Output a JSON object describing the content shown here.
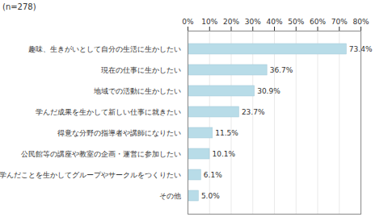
{
  "chart_data": {
    "type": "bar",
    "orientation": "horizontal",
    "annotations": [
      "(n=278)"
    ],
    "categories": [
      "趣味、生きがいとして自分の生活に生かしたい",
      "現在の仕事に生かしたい",
      "地域での活動に生かしたい",
      "学んだ成果を生かして新しい仕事に就きたい",
      "得意な分野の指導者や講師になりたい",
      "公民館等の講座や教室の企画・運営に参加したい",
      "学んだことを生かしてグループやサークルをつくりたい",
      "その他"
    ],
    "values": [
      73.4,
      36.7,
      30.9,
      23.7,
      11.5,
      10.1,
      6.1,
      5.0
    ],
    "value_labels": [
      "73.4%",
      "36.7%",
      "30.9%",
      "23.7%",
      "11.5%",
      "10.1%",
      "6.1%",
      "5.0%"
    ],
    "data_labels": true,
    "color": "#b8dce8",
    "xlim": [
      0,
      80
    ],
    "xticks": [
      {
        "value": 0,
        "label": "0%"
      },
      {
        "value": 10,
        "label": "10%"
      },
      {
        "value": 20,
        "label": "20%"
      },
      {
        "value": 30,
        "label": "30%"
      },
      {
        "value": 40,
        "label": "40%"
      },
      {
        "value": 50,
        "label": "50%"
      },
      {
        "value": 60,
        "label": "60%"
      },
      {
        "value": 70,
        "label": "70%"
      },
      {
        "value": 80,
        "label": "80%"
      }
    ],
    "grid": true
  }
}
